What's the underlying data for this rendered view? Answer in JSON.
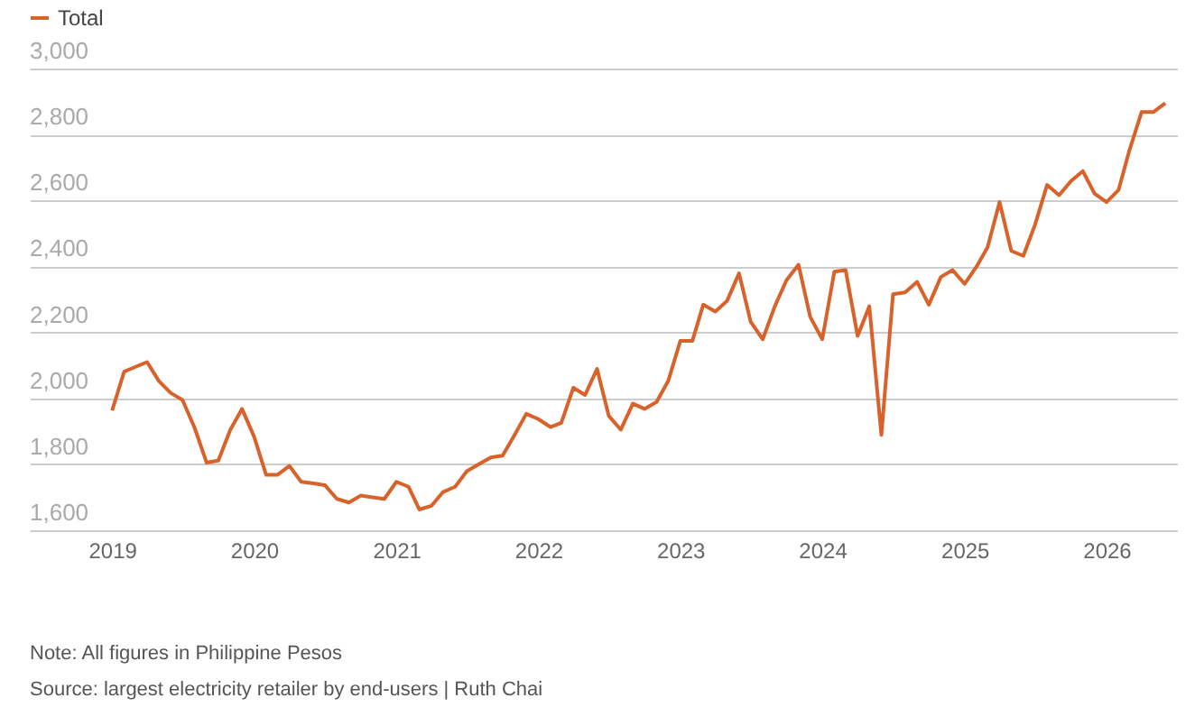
{
  "chart_data": {
    "type": "line",
    "x": [
      "2019-01",
      "2019-02",
      "2019-03",
      "2019-04",
      "2019-05",
      "2019-06",
      "2019-07",
      "2019-08",
      "2019-09",
      "2019-10",
      "2019-11",
      "2019-12",
      "2020-01",
      "2020-02",
      "2020-03",
      "2020-04",
      "2020-05",
      "2020-06",
      "2020-07",
      "2020-08",
      "2020-09",
      "2020-10",
      "2020-11",
      "2020-12",
      "2021-01",
      "2021-02",
      "2021-03",
      "2021-04",
      "2021-05",
      "2021-06",
      "2021-07",
      "2021-08",
      "2021-09",
      "2021-10",
      "2021-11",
      "2021-12",
      "2022-01",
      "2022-02",
      "2022-03",
      "2022-04",
      "2022-05",
      "2022-06",
      "2022-07",
      "2022-08",
      "2022-09",
      "2022-10",
      "2022-11",
      "2022-12",
      "2023-01",
      "2023-02",
      "2023-03",
      "2023-04",
      "2023-05",
      "2023-06",
      "2023-07",
      "2023-08",
      "2023-09",
      "2023-10",
      "2023-11",
      "2023-12",
      "2024-01",
      "2024-02",
      "2024-03",
      "2024-04",
      "2024-05",
      "2024-06",
      "2024-07",
      "2024-08",
      "2024-09",
      "2024-10",
      "2024-11",
      "2024-12",
      "2025-01",
      "2025-02",
      "2025-03",
      "2025-04",
      "2025-05",
      "2025-06",
      "2025-07",
      "2025-08",
      "2025-09",
      "2025-10",
      "2025-11",
      "2025-12",
      "2026-01",
      "2026-02",
      "2026-03",
      "2026-04",
      "2026-05",
      "2026-06"
    ],
    "series": [
      {
        "name": "Total",
        "color": "#d9622b",
        "values": [
          1963,
          2081,
          2095,
          2110,
          2053,
          2016,
          1995,
          1911,
          1805,
          1811,
          1905,
          1968,
          1884,
          1768,
          1768,
          1795,
          1747,
          1742,
          1737,
          1695,
          1684,
          1705,
          1700,
          1695,
          1747,
          1732,
          1663,
          1674,
          1716,
          1732,
          1779,
          1800,
          1821,
          1826,
          1889,
          1953,
          1937,
          1913,
          1926,
          2032,
          2010,
          2089,
          1947,
          1905,
          1984,
          1968,
          1989,
          2053,
          2174,
          2174,
          2284,
          2263,
          2295,
          2379,
          2232,
          2179,
          2279,
          2358,
          2405,
          2247,
          2179,
          2384,
          2389,
          2189,
          2279,
          1889,
          2316,
          2321,
          2353,
          2284,
          2368,
          2389,
          2347,
          2400,
          2458,
          2595,
          2447,
          2432,
          2526,
          2647,
          2616,
          2658,
          2689,
          2621,
          2595,
          2632,
          2753,
          2868,
          2868,
          2895
        ]
      }
    ],
    "xlim": [
      "2018-06",
      "2026-07"
    ],
    "xticks": [
      "2019",
      "2020",
      "2021",
      "2022",
      "2023",
      "2024",
      "2025",
      "2026"
    ],
    "ylim": [
      1600,
      3000
    ],
    "yticks": [
      {
        "value": 1600,
        "label": "1,600"
      },
      {
        "value": 1800,
        "label": "1,800"
      },
      {
        "value": 2000,
        "label": "2,000"
      },
      {
        "value": 2200,
        "label": "2,200"
      },
      {
        "value": 2400,
        "label": "2,400"
      },
      {
        "value": 2600,
        "label": "2,600"
      },
      {
        "value": 2800,
        "label": "2,800"
      },
      {
        "value": 3000,
        "label": "3,000"
      }
    ],
    "grid": "y",
    "legend": "top left",
    "line_style": "solid",
    "marker": "none",
    "annotations": [
      "Note: All figures in Philippine Pesos",
      "Source: largest electricity retailer by end-users | Ruth Chai"
    ]
  }
}
